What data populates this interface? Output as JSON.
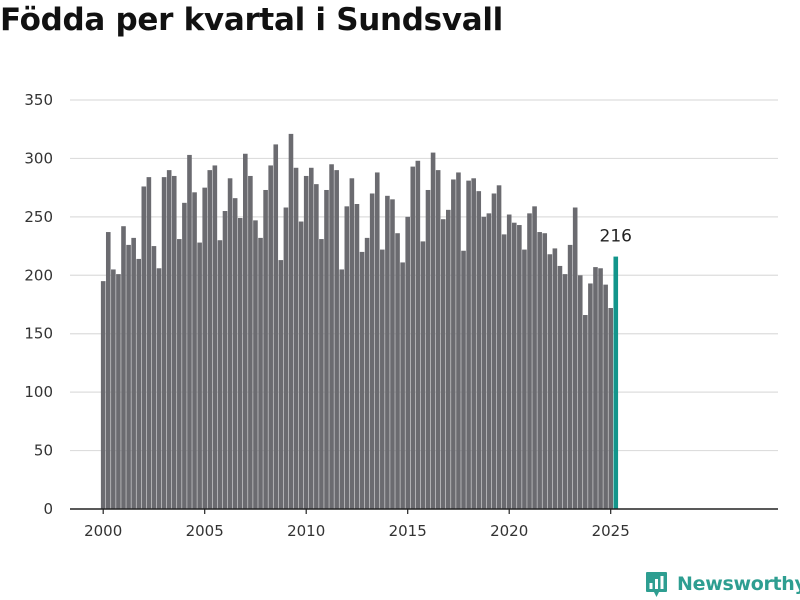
{
  "title": "Födda per kvartal i Sundsvall",
  "brand": {
    "name": "Newsworthy",
    "icon": "newsworthy-logo-icon",
    "color": "#2e9e91"
  },
  "colors": {
    "bar": "#6b6b70",
    "highlight": "#12958b",
    "grid": "#dddddd",
    "axis": "#222222"
  },
  "chart_data": {
    "type": "bar",
    "title": "Födda per kvartal i Sundsvall",
    "xlabel": "",
    "ylabel": "",
    "x_start": "2000 Q1",
    "x_ticks": [
      "2000",
      "2005",
      "2010",
      "2015",
      "2020",
      "2025"
    ],
    "y_ticks": [
      0,
      50,
      100,
      150,
      200,
      250,
      300,
      350
    ],
    "ylim": [
      0,
      350
    ],
    "grid": true,
    "highlight_last": true,
    "last_value_label": "216",
    "values": [
      195,
      237,
      205,
      201,
      242,
      226,
      232,
      214,
      276,
      284,
      225,
      206,
      284,
      290,
      285,
      231,
      262,
      303,
      271,
      228,
      275,
      290,
      294,
      230,
      255,
      283,
      266,
      249,
      304,
      285,
      247,
      232,
      273,
      294,
      312,
      213,
      258,
      321,
      292,
      246,
      285,
      292,
      278,
      231,
      273,
      295,
      290,
      205,
      259,
      283,
      261,
      220,
      232,
      270,
      288,
      222,
      268,
      265,
      236,
      211,
      250,
      293,
      298,
      229,
      273,
      305,
      290,
      248,
      256,
      282,
      288,
      221,
      281,
      283,
      272,
      250,
      253,
      270,
      277,
      235,
      252,
      245,
      243,
      222,
      253,
      259,
      237,
      236,
      218,
      223,
      208,
      201,
      226,
      258,
      200,
      166,
      193,
      207,
      206,
      192,
      172,
      216
    ]
  }
}
